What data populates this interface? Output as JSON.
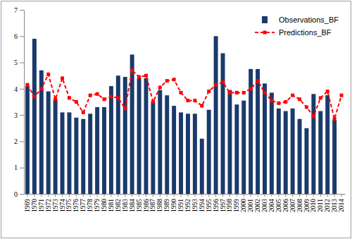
{
  "chart_data": {
    "type": "bar",
    "categories": [
      "1969",
      "1970",
      "1971",
      "1972",
      "1973",
      "1974",
      "1975",
      "1976",
      "1977",
      "1978",
      "1979",
      "1980",
      "1981",
      "1982",
      "1983",
      "1984",
      "1985",
      "1986",
      "1987",
      "1988",
      "1989",
      "1990",
      "1991",
      "1992",
      "1993",
      "1994",
      "1995",
      "1996",
      "1997",
      "1998",
      "1999",
      "2000",
      "2001",
      "2002",
      "2003",
      "2004",
      "2005",
      "2006",
      "2007",
      "2008",
      "2009",
      "2010",
      "2011",
      "2012",
      "2013",
      "2014"
    ],
    "series": [
      {
        "name": "Observations_BF",
        "type": "bar",
        "color": "#1a3a6b",
        "values": [
          4.1,
          5.9,
          4.7,
          3.9,
          3.6,
          3.1,
          3.1,
          2.9,
          2.85,
          3.05,
          3.3,
          3.3,
          4.1,
          4.5,
          4.45,
          5.3,
          4.4,
          4.4,
          3.5,
          3.95,
          3.75,
          3.35,
          3.1,
          3.05,
          3.05,
          2.1,
          3.2,
          6.0,
          5.35,
          3.95,
          3.4,
          3.55,
          4.75,
          4.75,
          4.2,
          3.85,
          3.25,
          3.15,
          3.25,
          2.85,
          2.5,
          3.8,
          3.15,
          3.75,
          2.8,
          null
        ]
      },
      {
        "name": "Predictions_BF",
        "type": "line",
        "color": "#ff0000",
        "line_style": "dashed",
        "marker": "square",
        "values": [
          4.15,
          3.7,
          4.0,
          4.55,
          3.6,
          4.4,
          3.65,
          3.5,
          3.1,
          3.75,
          3.8,
          3.6,
          3.7,
          3.65,
          3.25,
          4.7,
          4.45,
          4.5,
          3.5,
          4.05,
          4.3,
          4.35,
          3.85,
          3.55,
          3.55,
          3.35,
          3.9,
          4.15,
          4.25,
          3.85,
          3.85,
          3.85,
          4.0,
          4.3,
          3.85,
          3.55,
          3.45,
          3.5,
          3.75,
          3.6,
          3.3,
          2.95,
          3.65,
          3.9,
          2.85,
          3.75
        ]
      }
    ],
    "ylim": [
      0,
      7
    ],
    "yticks": [
      0,
      1,
      2,
      3,
      4,
      5,
      6,
      7
    ],
    "grid": false,
    "legend": "top-right"
  }
}
